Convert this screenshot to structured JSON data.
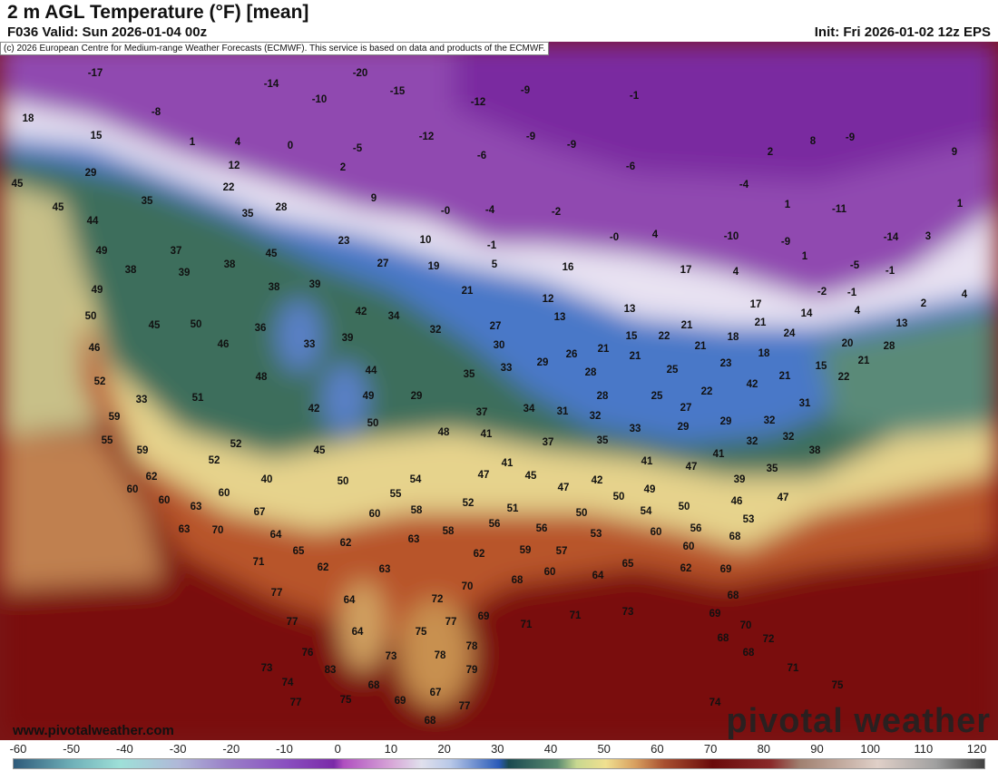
{
  "header": {
    "title": "2 m AGL Temperature (°F) [mean]",
    "valid": "F036 Valid: Sun 2026-01-04 00z",
    "init": "Init: Fri 2026-01-02 12z EPS"
  },
  "map": {
    "credit": "(c) 2026 European Centre for Medium-range Weather Forecasts (ECMWF). This service is based on data and products of the ECMWF.",
    "website": "www.pivotalweather.com",
    "logo": "pivotal weather",
    "labels": [
      "-17",
      "-20",
      "-14",
      "-15",
      "-10",
      "-9",
      "-1",
      "-12",
      "18",
      "-8",
      "15",
      "1",
      "4",
      "0",
      "-5",
      "-12",
      "-9",
      "-9",
      "-6",
      "2",
      "8",
      "-9",
      "9",
      "12",
      "2",
      "29",
      "-6",
      "-4",
      "45",
      "22",
      "9",
      "35",
      "45",
      "1",
      "-11",
      "1",
      "35",
      "28",
      "-0",
      "-4",
      "-2",
      "44",
      "23",
      "10",
      "-0",
      "4",
      "-10",
      "-9",
      "-14",
      "3",
      "1",
      "49",
      "37",
      "45",
      "-1",
      "16",
      "17",
      "4",
      "-5",
      "-1",
      "38",
      "38",
      "39",
      "27",
      "19",
      "5",
      "12",
      "21",
      "39",
      "38",
      "49",
      "-2",
      "-1",
      "4",
      "17",
      "2",
      "13",
      "4",
      "14",
      "42",
      "34",
      "13",
      "50",
      "45",
      "50",
      "36",
      "21",
      "21",
      "13",
      "32",
      "27",
      "21",
      "15",
      "22",
      "18",
      "24",
      "46",
      "46",
      "33",
      "39",
      "30",
      "21",
      "18",
      "20",
      "28",
      "21",
      "26",
      "29",
      "23",
      "21",
      "52",
      "48",
      "44",
      "35",
      "33",
      "28",
      "25",
      "15",
      "21",
      "22",
      "42",
      "33",
      "51",
      "49",
      "29",
      "28",
      "25",
      "22",
      "31",
      "42",
      "37",
      "34",
      "31",
      "27",
      "59",
      "50",
      "48",
      "41",
      "32",
      "33",
      "29",
      "29",
      "32",
      "55",
      "37",
      "35",
      "32",
      "32",
      "38",
      "59",
      "52",
      "45",
      "52",
      "41",
      "41",
      "47",
      "41",
      "47",
      "45",
      "39",
      "35",
      "62",
      "40",
      "50",
      "54",
      "47",
      "42",
      "49",
      "60",
      "60",
      "55",
      "52",
      "51",
      "50",
      "50",
      "46",
      "47",
      "60",
      "63",
      "67",
      "60",
      "58",
      "50",
      "54",
      "56",
      "56",
      "53",
      "63",
      "70",
      "64",
      "62",
      "63",
      "58",
      "53",
      "60",
      "56",
      "68",
      "65",
      "59",
      "57",
      "60",
      "71",
      "62",
      "63",
      "62",
      "68",
      "60",
      "64",
      "65",
      "62",
      "69",
      "70",
      "77",
      "64",
      "72",
      "68",
      "69",
      "71",
      "71",
      "73",
      "77",
      "75",
      "77",
      "69",
      "70",
      "64",
      "72",
      "68",
      "76",
      "73",
      "78",
      "78",
      "68",
      "73",
      "83",
      "79",
      "74",
      "68",
      "71",
      "75",
      "77",
      "75",
      "69",
      "67",
      "77",
      "74",
      "68"
    ]
  },
  "colorbar": {
    "ticks": [
      "-60",
      "-50",
      "-40",
      "-30",
      "-20",
      "-10",
      "0",
      "10",
      "20",
      "30",
      "40",
      "50",
      "60",
      "70",
      "80",
      "90",
      "100",
      "110",
      "120"
    ]
  }
}
